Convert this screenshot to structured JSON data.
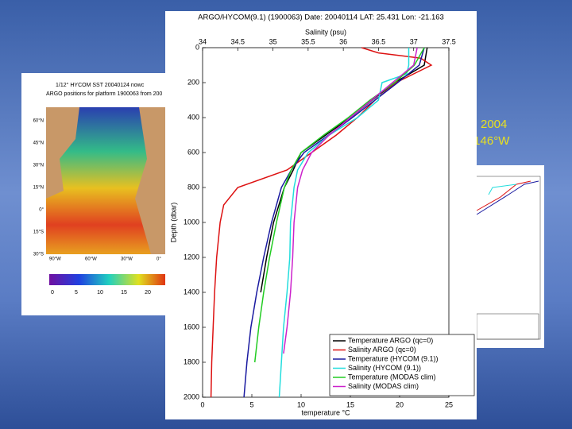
{
  "slide": {
    "text_lines": [
      "2004",
      ".146°W"
    ],
    "map": {
      "title_lines": [
        "1/12° HYCOM SST 20040124 nowc",
        "ARGO positions for platform 1900063 from 200"
      ],
      "lat_labels": [
        "60°N",
        "45°N",
        "30°N",
        "15°N",
        "0°",
        "15°S",
        "30°S"
      ],
      "lon_labels": [
        "90°W",
        "60°W",
        "30°W",
        "0°"
      ],
      "colorbar_ticks": [
        "0",
        "5",
        "10",
        "15",
        "20"
      ]
    }
  },
  "chart_data": {
    "type": "line",
    "title": "ARGO/HYCOM(9.1) (1900063) Date: 20040114 LAT: 25.431 Lon: -21.163",
    "xlabel": "temperature °C",
    "x2label": "Salinity (psu)",
    "ylabel": "Depth (dbar)",
    "xlim": [
      0,
      25
    ],
    "xticks": [
      0,
      5,
      10,
      15,
      20,
      25
    ],
    "x2lim": [
      34,
      37.5
    ],
    "x2ticks": [
      34,
      34.5,
      35,
      35.5,
      36,
      36.5,
      37,
      37.5
    ],
    "ylim": [
      2000,
      0
    ],
    "yticks": [
      0,
      200,
      400,
      600,
      800,
      1000,
      1200,
      1400,
      1600,
      1800,
      2000
    ],
    "grid": false,
    "legend": "lower right",
    "series": [
      {
        "name": "Temperature ARGO (qc=0)",
        "color": "#000000",
        "axis": "x",
        "x": [
          22.8,
          22.5,
          19.5,
          17.2,
          15.0,
          12.5,
          10.0,
          9.2,
          8.3,
          7.2,
          6.5,
          5.9
        ],
        "y": [
          0,
          100,
          200,
          300,
          400,
          500,
          600,
          700,
          800,
          1000,
          1200,
          1400
        ]
      },
      {
        "name": "Salinity ARGO (qc=0)",
        "color": "#dd1111",
        "axis": "x2",
        "x": [
          36.26,
          36.5,
          37.1,
          37.25,
          37.0,
          36.75,
          36.45,
          36.2,
          35.9,
          35.55,
          35.2,
          34.5,
          34.3,
          34.25,
          34.2,
          34.17,
          34.15,
          34.13,
          34.12
        ],
        "y": [
          0,
          30,
          60,
          100,
          150,
          200,
          300,
          400,
          500,
          600,
          700,
          800,
          900,
          1000,
          1200,
          1400,
          1600,
          1800,
          2000
        ]
      },
      {
        "name": "Temperature (HYCOM (9.1))",
        "color": "#1a1aa0",
        "axis": "x",
        "x": [
          22.5,
          22.0,
          19.8,
          17.5,
          15.2,
          12.8,
          10.3,
          9.0,
          8.0,
          7.0,
          6.2,
          5.5,
          4.9,
          4.5,
          4.2
        ],
        "y": [
          0,
          100,
          200,
          300,
          400,
          500,
          600,
          700,
          800,
          1000,
          1200,
          1400,
          1600,
          1800,
          2000
        ]
      },
      {
        "name": "Salinity (HYCOM (9.1))",
        "color": "#22dddd",
        "axis": "x2",
        "x": [
          36.93,
          36.93,
          36.9,
          36.55,
          36.5,
          36.2,
          35.8,
          35.5,
          35.35,
          35.3,
          35.25,
          35.24,
          35.2,
          35.15,
          35.12,
          35.09
        ],
        "y": [
          0,
          100,
          150,
          200,
          300,
          400,
          500,
          600,
          700,
          800,
          1000,
          1200,
          1400,
          1600,
          1800,
          2000
        ]
      },
      {
        "name": "Temperature (MODAS clim)",
        "color": "#22cc22",
        "axis": "x",
        "x": [
          22.5,
          21.5,
          19.5,
          17.0,
          14.8,
          12.3,
          10.0,
          9.0,
          8.3,
          7.5,
          6.8,
          6.2,
          5.7,
          5.3
        ],
        "y": [
          0,
          100,
          200,
          300,
          400,
          500,
          600,
          700,
          800,
          1000,
          1200,
          1400,
          1600,
          1800
        ]
      },
      {
        "name": "Salinity (MODAS clim)",
        "color": "#cc22cc",
        "axis": "x2",
        "x": [
          37.05,
          37.0,
          36.7,
          36.4,
          36.1,
          35.8,
          35.55,
          35.42,
          35.35,
          35.3,
          35.28,
          35.25,
          35.2,
          35.15
        ],
        "y": [
          0,
          100,
          200,
          300,
          400,
          500,
          600,
          700,
          800,
          1000,
          1200,
          1400,
          1600,
          1750
        ]
      }
    ]
  }
}
